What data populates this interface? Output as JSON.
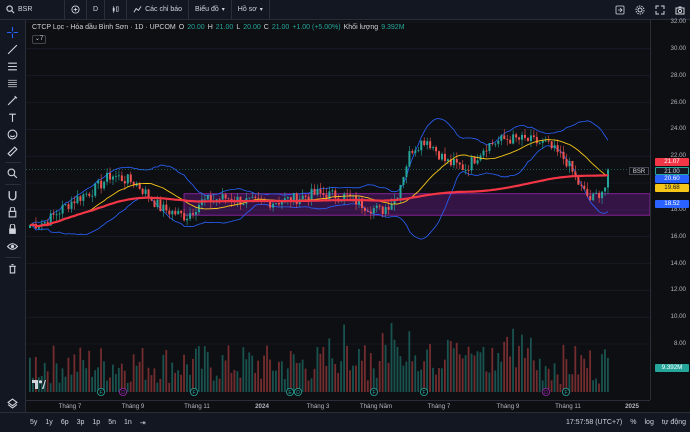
{
  "topbar": {
    "symbol": "BSR",
    "interval": "D",
    "indicators_label": "Các chỉ báo",
    "chart_type_label": "Biểu đồ",
    "layout_label": "Hồ sơ"
  },
  "legend": {
    "title": "CTCP Lọc - Hóa dầu Bình Sơn · 1D · UPCOM",
    "o_label": "O",
    "o_value": "20.00",
    "h_label": "H",
    "h_value": "21.00",
    "l_label": "L",
    "l_value": "20.00",
    "c_label": "C",
    "c_value": "21.00",
    "change": "+1.00 (+5.00%)",
    "volume_label": "Khối lượng",
    "volume_value": "9.392M",
    "collapse_label": "7"
  },
  "price_scale": {
    "labels": [
      "32.00",
      "30.00",
      "28.00",
      "26.00",
      "24.00",
      "22.00",
      "18.00",
      "16.00",
      "14.00",
      "12.00",
      "10.00",
      "8.00"
    ],
    "tags": [
      {
        "text": "21.07",
        "color": "#f23645"
      },
      {
        "text": "21.00",
        "color": "#131722"
      },
      {
        "text": "20.60",
        "color": "#2962ff"
      },
      {
        "text": "19.68",
        "color": "#f5c518"
      },
      {
        "text": "18.52",
        "color": "#2962ff"
      },
      {
        "text": "9.392M",
        "color": "#26a69a"
      }
    ],
    "symbol_tag": "BSR"
  },
  "time_scale": {
    "labels": [
      "Tháng 7",
      "Tháng 9",
      "Tháng 11",
      "2024",
      "Tháng 3",
      "Tháng Năm",
      "Tháng 7",
      "Tháng 9",
      "Tháng 11",
      "2025"
    ]
  },
  "bottombar": {
    "ranges": [
      "5y",
      "1y",
      "6p",
      "3p",
      "1p",
      "5n",
      "1n"
    ],
    "time": "17:57:58 (UTC+7)",
    "percent": "%",
    "log": "log",
    "auto": "tự động"
  },
  "colors": {
    "up": "#26a69a",
    "down": "#ef5350",
    "ma_long": "#f23645",
    "ma_short": "#f5c518",
    "bollinger": "#2962ff",
    "zone": "#7b1fa2"
  },
  "chart_data": {
    "type": "line",
    "series": [
      {
        "name": "BSR",
        "x_labels": [
          "Tháng 7",
          "Tháng 9",
          "Tháng 11",
          "2024",
          "Tháng 3",
          "Tháng Năm",
          "Tháng 7",
          "Tháng 9",
          "Tháng 11"
        ],
        "values": [
          16.8,
          20.5,
          17.8,
          18.8,
          18.9,
          18.6,
          23.0,
          23.5,
          21.0
        ]
      }
    ],
    "ylim": [
      6.8,
      32.0
    ],
    "last_close": 21.0
  }
}
